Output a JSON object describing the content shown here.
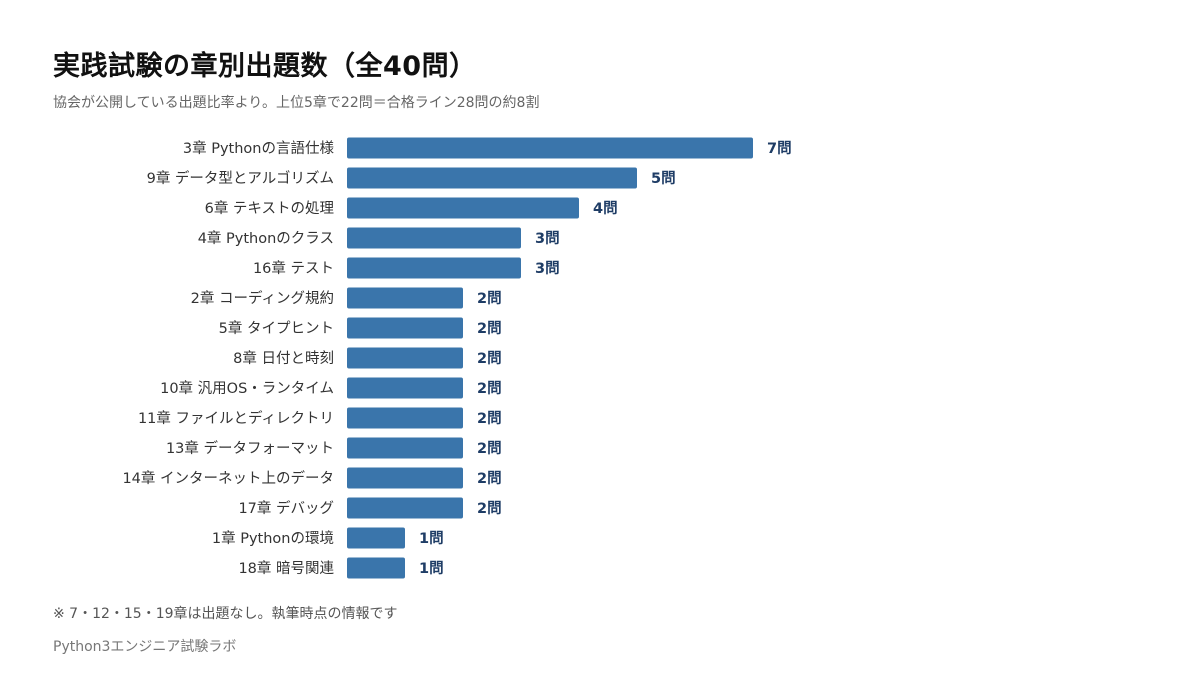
{
  "header": {
    "title": "実践試験の章別出題数（全40問）",
    "subtitle": "協会が公開している出題比率より。上位5章で22問＝合格ライン28問の約8割"
  },
  "footer": {
    "note": "※ 7・12・15・19章は出題なし。執筆時点の情報です",
    "source": "Python3エンジニア試験ラボ"
  },
  "colors": {
    "bar": "#3a75ab",
    "value_label": "#1f3d66",
    "category_label": "#333333"
  },
  "chart_data": {
    "type": "bar",
    "orientation": "horizontal",
    "categories": [
      "3章 Pythonの言語仕様",
      "9章 データ型とアルゴリズム",
      "6章 テキストの処理",
      "4章 Pythonのクラス",
      "16章 テスト",
      "2章 コーディング規約",
      "5章 タイプヒント",
      "8章 日付と時刻",
      "10章 汎用OS・ランタイム",
      "11章 ファイルとディレクトリ",
      "13章 データフォーマット",
      "14章 インターネット上のデータ",
      "17章 デバッグ",
      "1章 Pythonの環境",
      "18章 暗号関連"
    ],
    "values": [
      7,
      5,
      4,
      3,
      3,
      2,
      2,
      2,
      2,
      2,
      2,
      2,
      2,
      1,
      1
    ],
    "value_labels": [
      "7問",
      "5問",
      "4問",
      "3問",
      "3問",
      "2問",
      "2問",
      "2問",
      "2問",
      "2問",
      "2問",
      "2問",
      "2問",
      "1問",
      "1問"
    ],
    "xlim": [
      0,
      7
    ],
    "grid": false,
    "legend": "none"
  }
}
